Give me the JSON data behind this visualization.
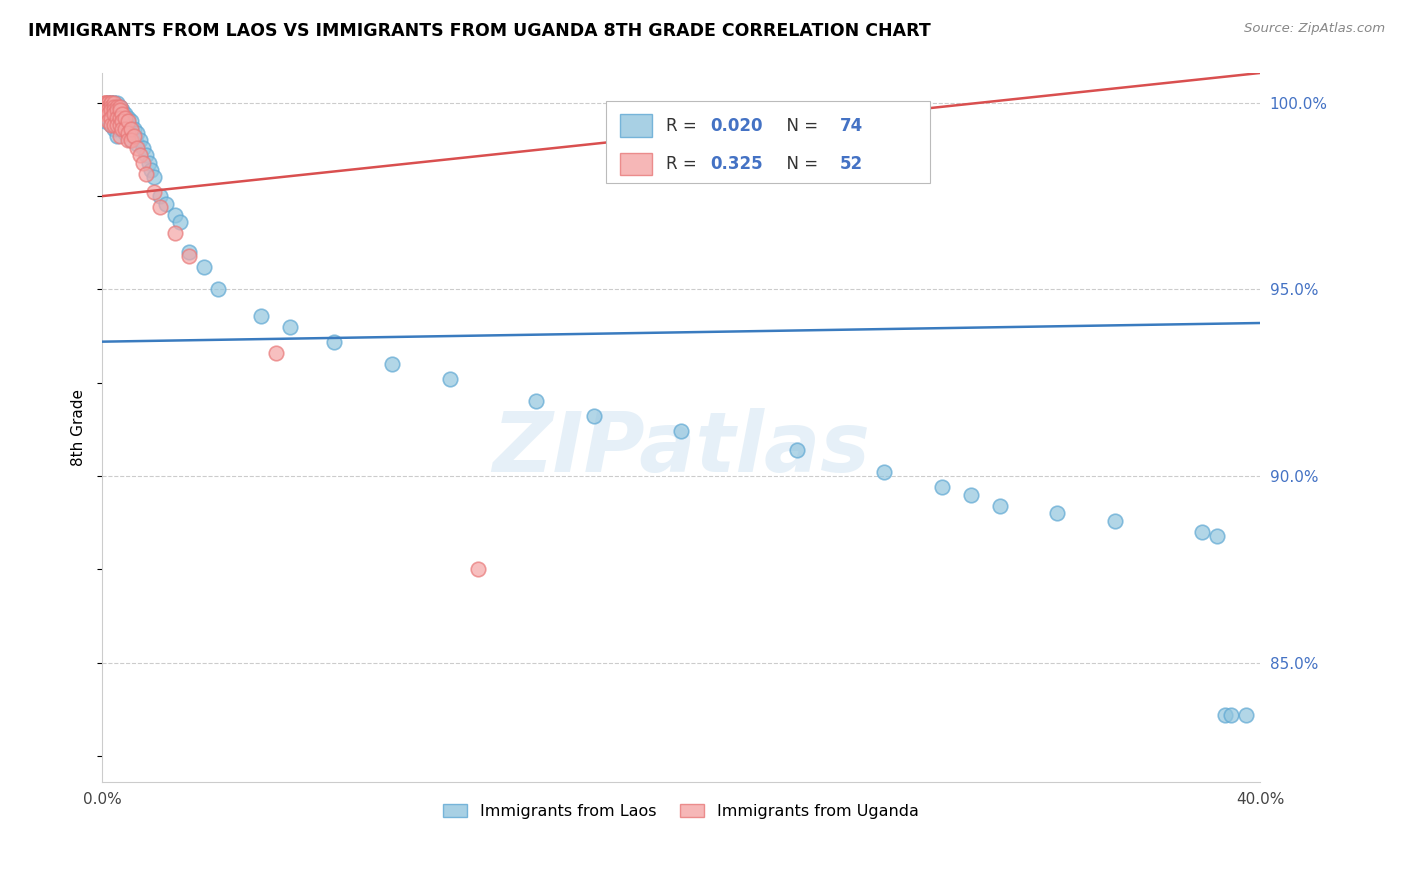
{
  "title": "IMMIGRANTS FROM LAOS VS IMMIGRANTS FROM UGANDA 8TH GRADE CORRELATION CHART",
  "source": "Source: ZipAtlas.com",
  "ylabel": "8th Grade",
  "xlim": [
    0.0,
    0.4
  ],
  "ylim": [
    0.818,
    1.008
  ],
  "legend_laos_R": "0.020",
  "legend_laos_N": "74",
  "legend_uganda_R": "0.325",
  "legend_uganda_N": "52",
  "laos_color": "#92c5de",
  "laos_edge_color": "#5fa8d3",
  "uganda_color": "#f4a5a5",
  "uganda_edge_color": "#e87878",
  "laos_line_color": "#3a7bbf",
  "uganda_line_color": "#d94f4f",
  "watermark": "ZIPatlas",
  "laos_x": [
    0.001,
    0.001,
    0.001,
    0.002,
    0.002,
    0.002,
    0.002,
    0.003,
    0.003,
    0.003,
    0.003,
    0.003,
    0.004,
    0.004,
    0.004,
    0.004,
    0.004,
    0.005,
    0.005,
    0.005,
    0.005,
    0.005,
    0.006,
    0.006,
    0.006,
    0.006,
    0.007,
    0.007,
    0.007,
    0.008,
    0.008,
    0.008,
    0.009,
    0.009,
    0.01,
    0.01,
    0.01,
    0.011,
    0.011,
    0.012,
    0.012,
    0.013,
    0.014,
    0.015,
    0.016,
    0.017,
    0.018,
    0.02,
    0.022,
    0.025,
    0.027,
    0.03,
    0.035,
    0.04,
    0.055,
    0.065,
    0.08,
    0.1,
    0.12,
    0.15,
    0.17,
    0.2,
    0.24,
    0.27,
    0.29,
    0.3,
    0.31,
    0.33,
    0.35,
    0.38,
    0.385,
    0.388,
    0.39,
    0.395
  ],
  "laos_y": [
    0.999,
    0.997,
    0.995,
    1.0,
    1.0,
    0.999,
    0.996,
    1.0,
    1.0,
    0.999,
    0.997,
    0.994,
    1.0,
    1.0,
    0.999,
    0.997,
    0.993,
    1.0,
    0.999,
    0.997,
    0.995,
    0.991,
    0.999,
    0.997,
    0.995,
    0.993,
    0.998,
    0.996,
    0.993,
    0.997,
    0.995,
    0.992,
    0.996,
    0.994,
    0.995,
    0.993,
    0.99,
    0.993,
    0.991,
    0.992,
    0.989,
    0.99,
    0.988,
    0.986,
    0.984,
    0.982,
    0.98,
    0.975,
    0.973,
    0.97,
    0.968,
    0.96,
    0.956,
    0.95,
    0.943,
    0.94,
    0.936,
    0.93,
    0.926,
    0.92,
    0.916,
    0.912,
    0.907,
    0.901,
    0.897,
    0.895,
    0.892,
    0.89,
    0.888,
    0.885,
    0.884,
    0.836,
    0.836,
    0.836
  ],
  "uganda_x": [
    0.001,
    0.001,
    0.001,
    0.001,
    0.001,
    0.002,
    0.002,
    0.002,
    0.002,
    0.002,
    0.002,
    0.003,
    0.003,
    0.003,
    0.003,
    0.003,
    0.003,
    0.004,
    0.004,
    0.004,
    0.004,
    0.004,
    0.005,
    0.005,
    0.005,
    0.005,
    0.006,
    0.006,
    0.006,
    0.006,
    0.006,
    0.007,
    0.007,
    0.007,
    0.008,
    0.008,
    0.009,
    0.009,
    0.009,
    0.01,
    0.01,
    0.011,
    0.012,
    0.013,
    0.014,
    0.015,
    0.018,
    0.02,
    0.025,
    0.03,
    0.06,
    0.13
  ],
  "uganda_y": [
    1.0,
    1.0,
    1.0,
    0.999,
    0.997,
    1.0,
    1.0,
    0.999,
    0.998,
    0.997,
    0.995,
    1.0,
    1.0,
    0.999,
    0.998,
    0.996,
    0.994,
    1.0,
    0.999,
    0.998,
    0.997,
    0.994,
    0.999,
    0.998,
    0.996,
    0.994,
    0.999,
    0.998,
    0.996,
    0.994,
    0.991,
    0.997,
    0.995,
    0.993,
    0.996,
    0.993,
    0.995,
    0.992,
    0.99,
    0.993,
    0.99,
    0.991,
    0.988,
    0.986,
    0.984,
    0.981,
    0.976,
    0.972,
    0.965,
    0.959,
    0.933,
    0.875
  ],
  "laos_trendline_x": [
    0.0,
    0.4
  ],
  "laos_trendline_y": [
    0.936,
    0.941
  ],
  "uganda_trendline_x": [
    0.0,
    0.4
  ],
  "uganda_trendline_y": [
    0.975,
    1.008
  ]
}
